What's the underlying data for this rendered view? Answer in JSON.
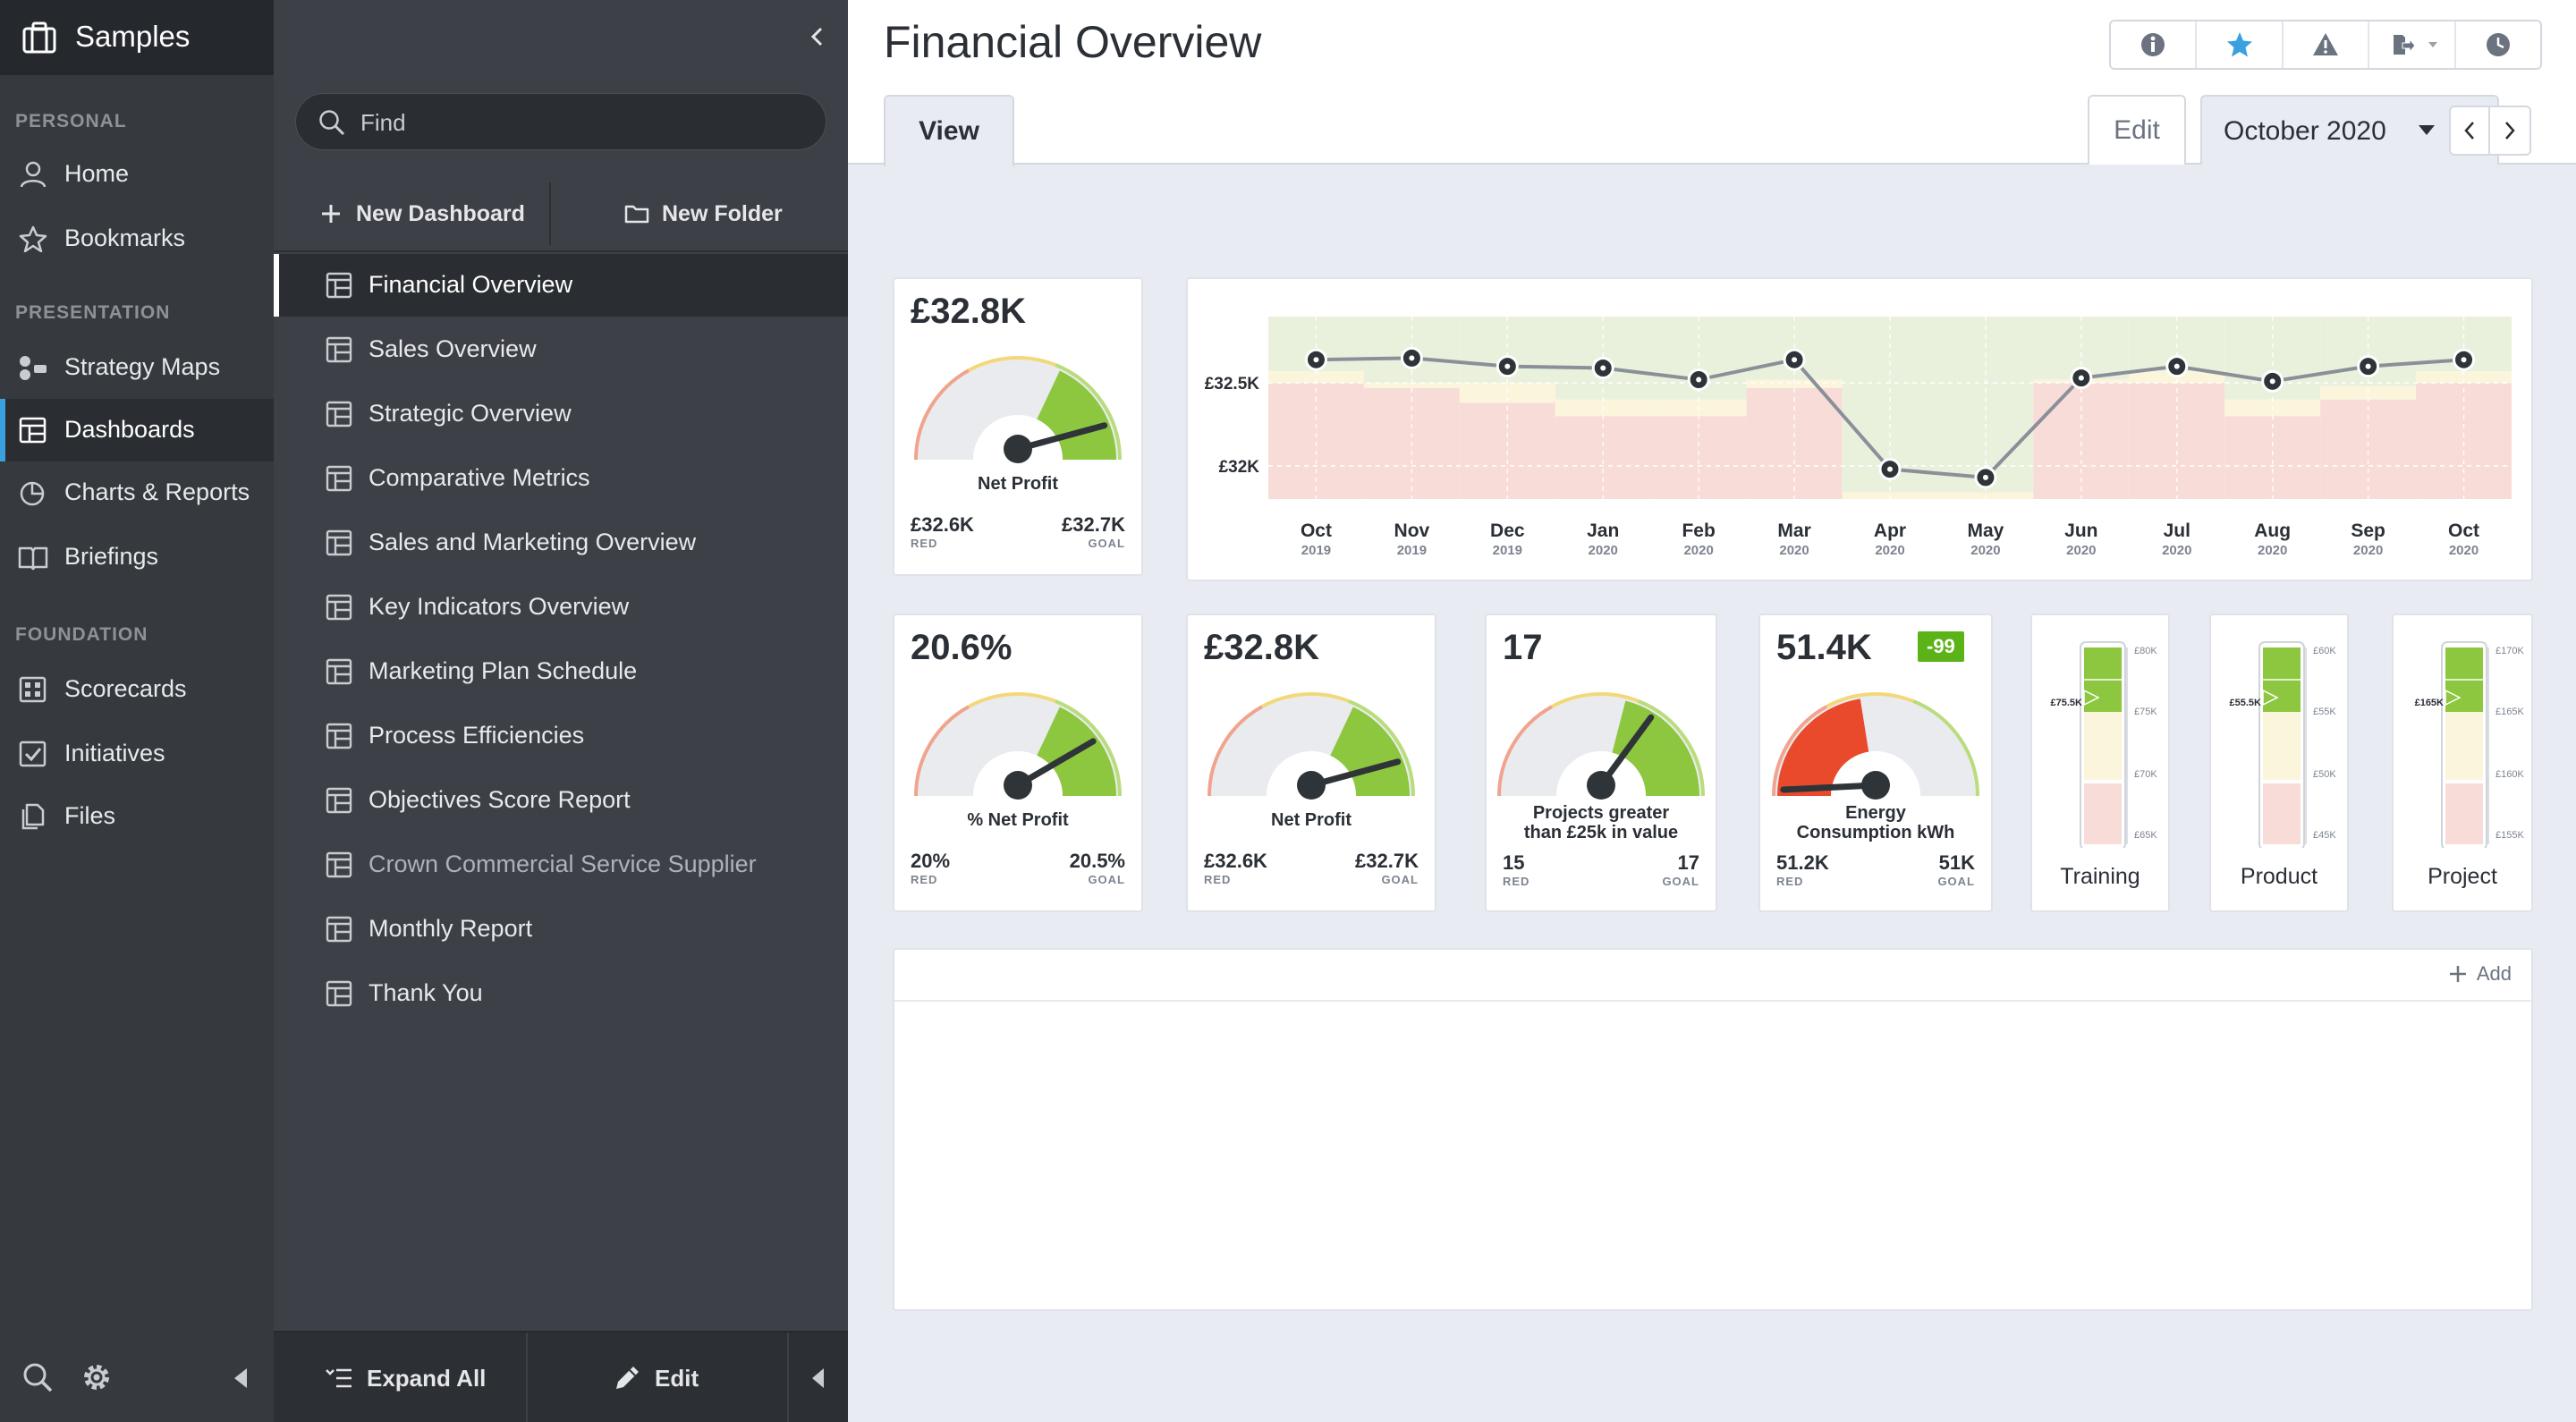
{
  "app": {
    "title": "Samples"
  },
  "nav": {
    "sections": [
      {
        "label": "PERSONAL"
      },
      {
        "label": "PRESENTATION"
      },
      {
        "label": "FOUNDATION"
      }
    ],
    "items": [
      {
        "label": "Home",
        "icon": "user-icon"
      },
      {
        "label": "Bookmarks",
        "icon": "star-icon"
      },
      {
        "label": "Strategy Maps",
        "icon": "strategy-map-icon"
      },
      {
        "label": "Dashboards",
        "icon": "dashboard-icon",
        "active": true
      },
      {
        "label": "Charts & Reports",
        "icon": "pie-chart-icon"
      },
      {
        "label": "Briefings",
        "icon": "book-icon"
      },
      {
        "label": "Scorecards",
        "icon": "scorecard-icon"
      },
      {
        "label": "Initiatives",
        "icon": "checkbox-icon"
      },
      {
        "label": "Files",
        "icon": "files-icon"
      }
    ]
  },
  "list": {
    "search_placeholder": "Find",
    "new_dashboard": "New Dashboard",
    "new_folder": "New Folder",
    "items": [
      "Financial Overview",
      "Sales Overview",
      "Strategic Overview",
      "Comparative Metrics",
      "Sales and Marketing Overview",
      "Key Indicators Overview",
      "Marketing Plan Schedule",
      "Process Efficiencies",
      "Objectives Score Report",
      "Crown Commercial Service Supplier",
      "Monthly Report",
      "Thank You"
    ],
    "expand_all": "Expand All",
    "edit": "Edit"
  },
  "header": {
    "title": "Financial Overview",
    "tab_view": "View",
    "edit": "Edit",
    "period": "October 2020"
  },
  "colors": {
    "accent": "#3aa0e0",
    "good": "#8dc63f",
    "warn": "#f4e9a6",
    "bad": "#f3d6d2",
    "red_badge": "#e84a2f",
    "green_badge": "#5bb318"
  },
  "gauges": [
    {
      "value": "£32.8K",
      "label": "Net Profit",
      "red": "£32.6K",
      "goal": "£32.7K",
      "red_caption": "RED",
      "goal_caption": "GOAL",
      "needle": 0.88
    },
    {
      "value": "20.6%",
      "label": "% Net Profit",
      "red": "20%",
      "goal": "20.5%",
      "red_caption": "RED",
      "goal_caption": "GOAL",
      "needle": 0.8
    },
    {
      "value": "£32.8K",
      "label": "Net Profit",
      "red": "£32.6K",
      "goal": "£32.7K",
      "red_caption": "RED",
      "goal_caption": "GOAL",
      "needle": 0.88
    },
    {
      "value": "17",
      "label": "Projects greater than £25k in value",
      "red": "15",
      "goal": "17",
      "red_caption": "RED",
      "goal_caption": "GOAL",
      "needle": 0.68
    },
    {
      "value": "51.4K",
      "label": "Energy Consumption kWh",
      "red": "51.2K",
      "goal": "51K",
      "red_caption": "RED",
      "goal_caption": "GOAL",
      "badge": "-99",
      "needle": 0.04
    }
  ],
  "thermometers": [
    {
      "label": "Training",
      "ticks": [
        "£80K",
        "£75K",
        "£70K",
        "£65K"
      ],
      "marker": "£75.5K"
    },
    {
      "label": "Product",
      "ticks": [
        "£60K",
        "£55K",
        "£50K",
        "£45K"
      ],
      "marker": "£55.5K"
    },
    {
      "label": "Project",
      "ticks": [
        "£170K",
        "£165K",
        "£160K",
        "£155K"
      ],
      "marker": "£165K"
    }
  ],
  "add_label": "Add",
  "chart_data": {
    "type": "line",
    "x": [
      "Oct 2019",
      "Nov 2019",
      "Dec 2019",
      "Jan 2020",
      "Feb 2020",
      "Mar 2020",
      "Apr 2020",
      "May 2020",
      "Jun 2020",
      "Jul 2020",
      "Aug 2020",
      "Sep 2020",
      "Oct 2020"
    ],
    "x_month": [
      "Oct",
      "Nov",
      "Dec",
      "Jan",
      "Feb",
      "Mar",
      "Apr",
      "May",
      "Jun",
      "Jul",
      "Aug",
      "Sep",
      "Oct"
    ],
    "x_year": [
      "2019",
      "2019",
      "2019",
      "2020",
      "2020",
      "2020",
      "2020",
      "2020",
      "2020",
      "2020",
      "2020",
      "2020",
      "2020"
    ],
    "series": [
      {
        "values": [
          32.64,
          32.65,
          32.6,
          32.59,
          32.52,
          32.64,
          31.98,
          31.93,
          32.53,
          32.6,
          32.51,
          32.6,
          32.64
        ]
      }
    ],
    "goal": [
      32.57,
      32.5,
      32.5,
      32.4,
      32.4,
      32.52,
      31.84,
      31.84,
      32.52,
      32.57,
      32.4,
      32.48,
      32.57
    ],
    "red": [
      32.5,
      32.47,
      32.38,
      32.3,
      32.3,
      32.47,
      31.8,
      31.8,
      32.5,
      32.5,
      32.3,
      32.4,
      32.5
    ],
    "y_ticks": [
      {
        "value": 32.5,
        "label": "£32.5K"
      },
      {
        "value": 32,
        "label": "£32K"
      }
    ],
    "ylim": [
      31.8,
      32.9
    ],
    "xlabel": "",
    "ylabel": "",
    "grid": true
  }
}
